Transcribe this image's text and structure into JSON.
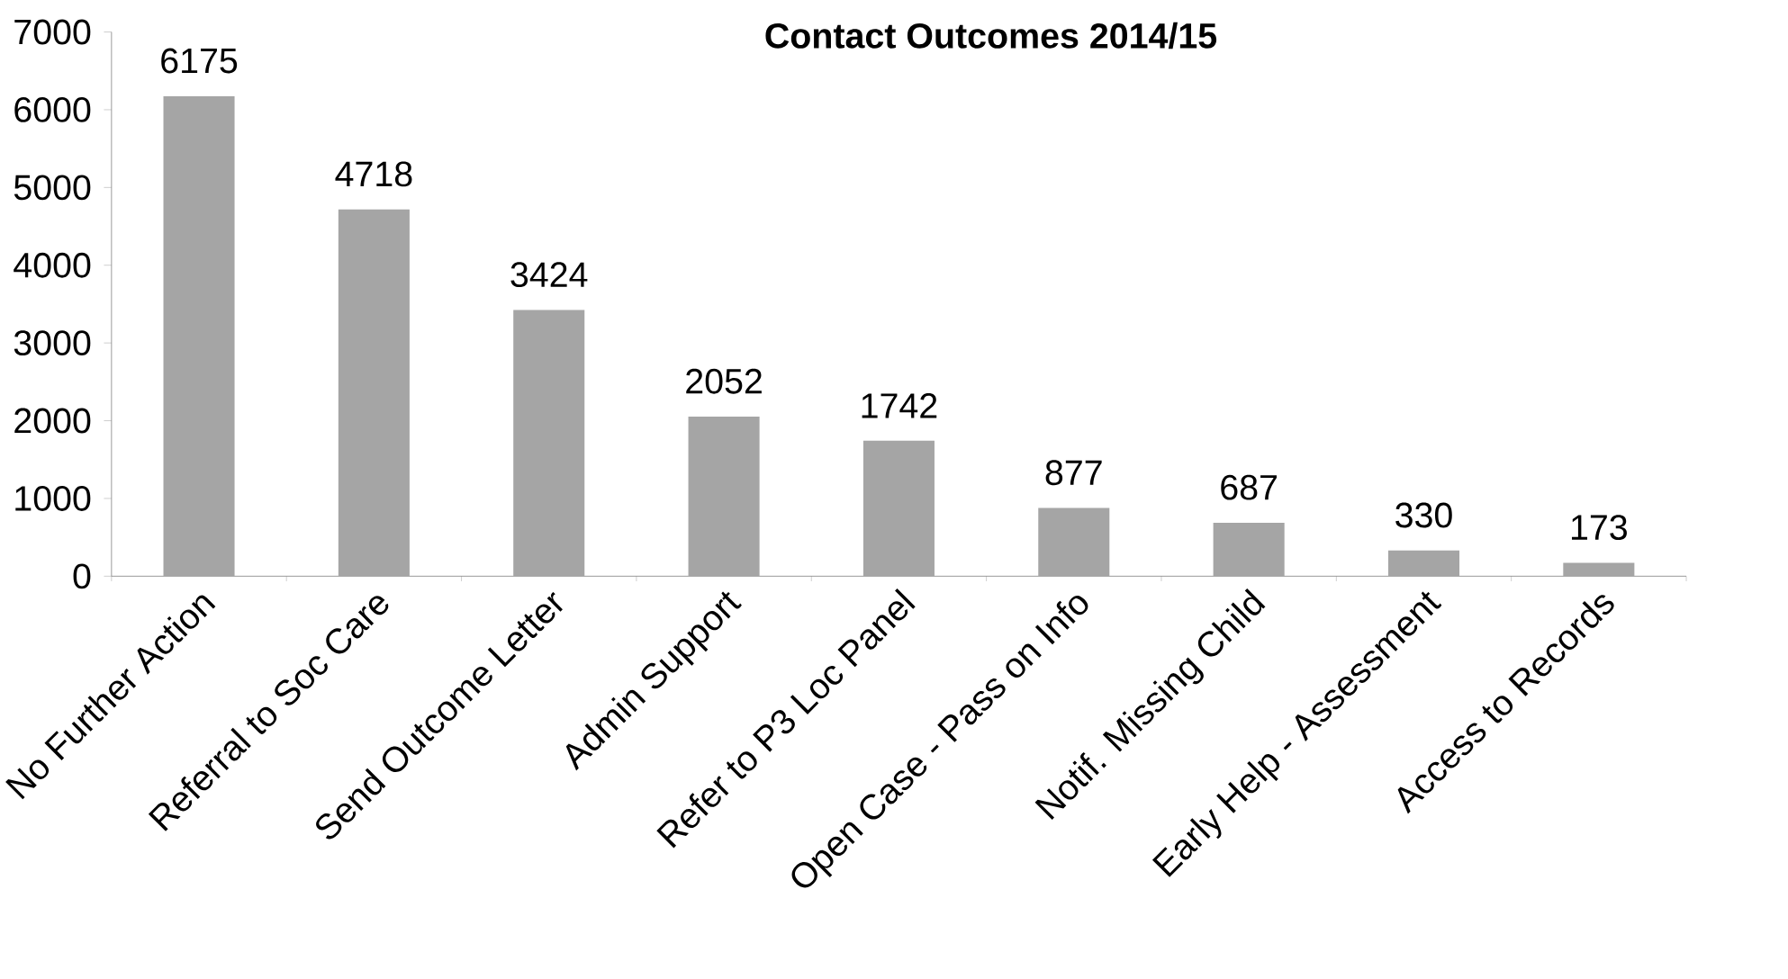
{
  "chart_data": {
    "type": "bar",
    "title": "**Contact Outcomes 2014/15**",
    "categories": [
      "No Further Action",
      "Referral to Soc Care",
      "Send Outcome Letter",
      "Admin Support",
      "Refer to P3 Loc Panel",
      "Open Case - Pass on Info",
      "Notif. Missing Child",
      "Early Help - Assessment",
      "Access to Records"
    ],
    "values": [
      6175,
      4718,
      3424,
      2052,
      1742,
      877,
      687,
      330,
      173
    ],
    "color": "#a5a5a5",
    "data_labels": true,
    "grid": false,
    "ylim": [
      0,
      7000
    ],
    "yticks": [
      0,
      1000,
      2000,
      3000,
      4000,
      5000,
      6000,
      7000
    ]
  }
}
